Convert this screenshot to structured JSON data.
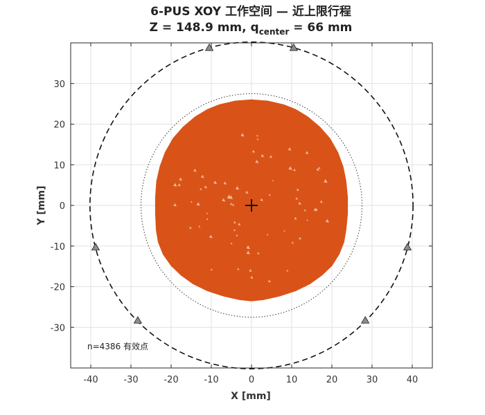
{
  "chart_data": {
    "type": "scatter",
    "title_line1": "6-PUS XOY 工作空间 — 近上限行程",
    "title_line2": {
      "prefix": "Z = 148.9 mm,  q",
      "sub": "center",
      "suffix": " = 66 mm"
    },
    "xlabel": "X [mm]",
    "ylabel": "Y [mm]",
    "xlim": [
      -45,
      45
    ],
    "ylim": [
      -40,
      40
    ],
    "xticks": [
      -40,
      -30,
      -20,
      -10,
      0,
      10,
      20,
      30,
      40
    ],
    "yticks": [
      -30,
      -20,
      -10,
      0,
      10,
      20,
      30
    ],
    "grid": true,
    "annotation": "n=4386 有效点",
    "workspace_color": "#D95319",
    "workspace_boundary": [
      [
        0,
        26
      ],
      [
        4,
        25.7
      ],
      [
        8,
        24.8
      ],
      [
        11,
        23.6
      ],
      [
        14,
        21.8
      ],
      [
        17,
        19.3
      ],
      [
        19.5,
        16.5
      ],
      [
        21.5,
        13
      ],
      [
        22.8,
        9.5
      ],
      [
        23.5,
        6
      ],
      [
        23.9,
        2
      ],
      [
        23.9,
        -2
      ],
      [
        23.5,
        -6
      ],
      [
        23,
        -9
      ],
      [
        21.8,
        -12
      ],
      [
        20,
        -14.8
      ],
      [
        17.5,
        -17.2
      ],
      [
        14.5,
        -19.3
      ],
      [
        11,
        -21
      ],
      [
        7,
        -22.3
      ],
      [
        3,
        -23.2
      ],
      [
        0,
        -23.5
      ],
      [
        -3,
        -23.2
      ],
      [
        -7,
        -22.3
      ],
      [
        -11,
        -21
      ],
      [
        -14.5,
        -19.3
      ],
      [
        -17.5,
        -17.2
      ],
      [
        -20,
        -14.8
      ],
      [
        -22,
        -12
      ],
      [
        -23.2,
        -9
      ],
      [
        -23.7,
        -6
      ],
      [
        -23.9,
        -2
      ],
      [
        -23.9,
        2
      ],
      [
        -23.6,
        6
      ],
      [
        -22.8,
        9.5
      ],
      [
        -21.5,
        13
      ],
      [
        -19.5,
        16.5
      ],
      [
        -17,
        19.3
      ],
      [
        -14,
        21.8
      ],
      [
        -11,
        23.6
      ],
      [
        -8,
        24.8
      ],
      [
        -4,
        25.7
      ]
    ],
    "inner_circle_radius": 27.5,
    "outer_circle_radius": 40.2,
    "anchors": [
      [
        -10.5,
        38.8
      ],
      [
        10.5,
        38.8
      ],
      [
        -38.8,
        -10.3
      ],
      [
        38.8,
        -10.3
      ],
      [
        -28.3,
        -28.3
      ],
      [
        28.3,
        -28.3
      ]
    ],
    "center_marker": [
      0,
      0
    ]
  }
}
